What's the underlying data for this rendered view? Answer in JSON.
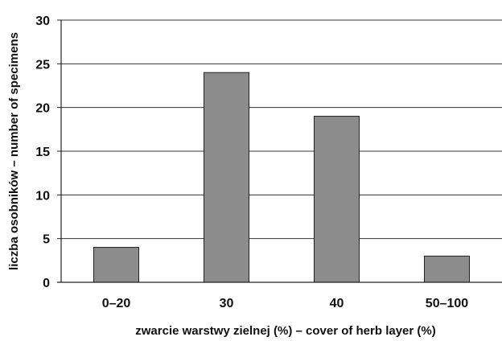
{
  "chart_data": {
    "type": "bar",
    "title": "",
    "xlabel": "zwarcie warstwy zielnej (%) – cover of herb layer (%)",
    "ylabel": "liczba osobników – number of specimens",
    "categories": [
      "0–20",
      "30",
      "40",
      "50–100"
    ],
    "values": [
      4,
      24,
      19,
      3
    ],
    "ylim": [
      0,
      30
    ],
    "yticks": [
      "0",
      "5",
      "10",
      "15",
      "20",
      "25",
      "30"
    ],
    "grid": "horizontal",
    "legend": "none",
    "bar_color": "#8c8c8c"
  }
}
